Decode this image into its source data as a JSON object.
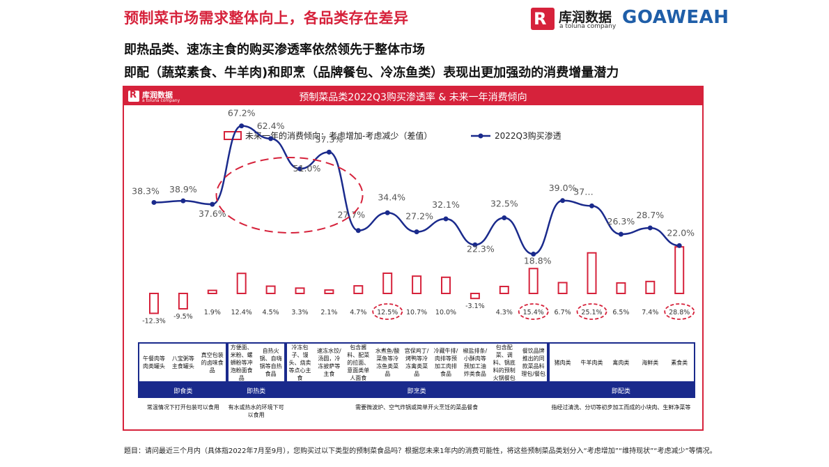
{
  "header": {
    "title": "预制菜市场需求整体向上，各品类存在差异",
    "subtitle_1": "即热品类、速冻主食的购买渗透率依然领先于整体市场",
    "subtitle_2": "即配（蔬菜素食、牛羊肉)和即烹（品牌餐包、冷冻鱼类）表现出更加强劲的消费增量潜力"
  },
  "logos": {
    "lr_mark": "R",
    "lr_name": "库润数据",
    "lr_tagline": "a toluna company",
    "goaweah": "GOAWEAH"
  },
  "colors": {
    "accent_red": "#d6223b",
    "line_blue": "#1a2a8c",
    "dashed_red": "#d6223b"
  },
  "chart_data": {
    "type": "bar+line",
    "title": "预制菜品类2022Q3购买渗透率 & 未来一年消费倾向",
    "legend": {
      "bar_label": "未来一年的消费倾向：考虑增加-考虑减少（差值）",
      "line_label": "2022Q3购买渗透",
      "placement": "top"
    },
    "categories": [
      "午餐肉等肉类罐头",
      "八宝粥等主食罐头",
      "真空包装的卤味食品",
      "方便面、米粉、螺蛳粉等冲泡粉面食品",
      "自热火锅、自嗨锅等自热食品",
      "冷冻包子、馒头、烧卖等点心主食",
      "速冻水饺/汤圆，冷冻披萨等主食",
      "包含酱料、配菜的拉面、意面类单人面食",
      "水煮鱼/酸菜鱼等冷冻鱼类菜品",
      "宫保鸡丁/烤鸭等冷冻禽类菜品",
      "冷藏牛排/肉排等预加工肉排食品",
      "椒盐排条/小酥肉等预加工油炸类食品",
      "包含配菜、调料、锅底料的预制火锅餐包",
      "餐饮品牌推出的同款菜品料理包/餐包",
      "猪肉类",
      "牛羊肉类",
      "禽肉类",
      "海鲜类",
      "素食类"
    ],
    "series": [
      {
        "name": "未来一年的消费倾向：考虑增加-考虑减少（差值）",
        "kind": "bar",
        "values": [
          -12.3,
          -9.5,
          1.9,
          12.4,
          4.5,
          3.3,
          2.1,
          4.7,
          12.5,
          10.7,
          10.0,
          -3.1,
          4.3,
          15.4,
          6.7,
          25.1,
          6.5,
          7.4,
          28.8
        ],
        "labels": [
          "-12.3%",
          "-9.5%",
          "1.9%",
          "12.4%",
          "4.5%",
          "3.3%",
          "2.1%",
          "4.7%",
          "12.5%",
          "10.7%",
          "10.0%",
          "-3.1%",
          "4.3%",
          "15.4%",
          "6.7%",
          "25.1%",
          "6.5%",
          "7.4%",
          "28.8%"
        ]
      },
      {
        "name": "2022Q3购买渗透",
        "kind": "line",
        "values": [
          38.3,
          38.9,
          37.6,
          67.2,
          62.4,
          51.0,
          57.3,
          27.7,
          34.4,
          27.2,
          32.1,
          22.3,
          32.5,
          18.8,
          39.0,
          37.0,
          26.3,
          28.7,
          22.0
        ],
        "labels": [
          "38.3%",
          "38.9%",
          "37.6%",
          "67.2%",
          "62.4%",
          "51.0%",
          "57.3%",
          "27.7%",
          "34.4%",
          "27.2%",
          "32.1%",
          "22.3%",
          "32.5%",
          "18.8%",
          "39.0%",
          "37…",
          "26.3%",
          "28.7%",
          "22.0%"
        ]
      }
    ],
    "highlighted_bars": [
      8,
      13,
      15,
      18
    ],
    "highlighted_line_range": [
      3,
      6
    ],
    "groups": [
      {
        "name": "即食类",
        "start": 0,
        "end": 2,
        "note": "常温情况下打开包装可以食用"
      },
      {
        "name": "即热类",
        "start": 3,
        "end": 4,
        "note": "有水或热水的环境下可以食用"
      },
      {
        "name": "即烹类",
        "start": 5,
        "end": 13,
        "note": "需要微波炉、空气炸锅或简单开火烹饪的菜品餐食"
      },
      {
        "name": "即配类",
        "start": 14,
        "end": 18,
        "note": "指经过清洗、分切等初步加工而成的小块肉、生鲜净菜等"
      }
    ],
    "grid": false
  },
  "footnote": "题目：请问最近三个月内（具体指2022年7月至9月），您购买过以下类型的预制菜食品吗？根据您未来1年内的消费可能性，将这些预制菜品类划分入“考虑增加”“维持现状”“考虑减少”等情况。"
}
